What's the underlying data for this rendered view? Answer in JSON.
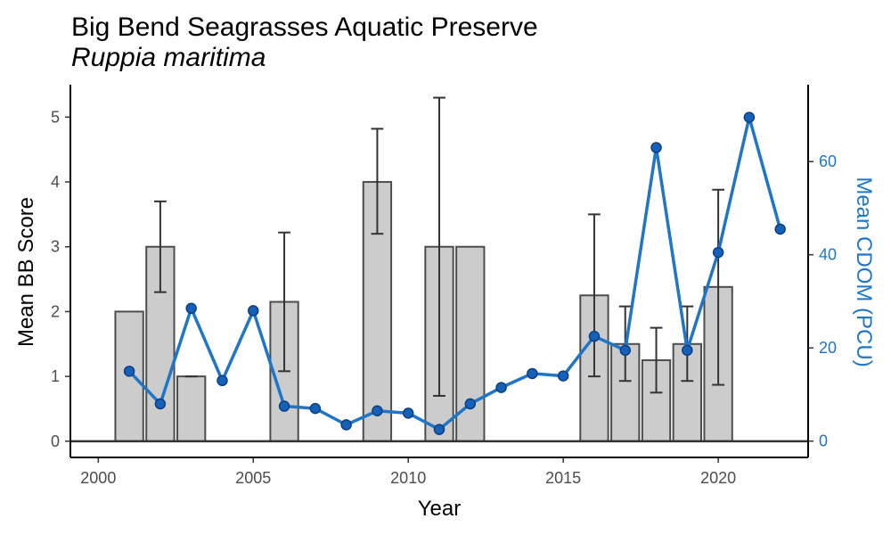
{
  "chart_data": {
    "type": "bar",
    "title": "Big Bend Seagrasses Aquatic Preserve",
    "subtitle": "Ruppia maritima",
    "xlabel": "Year",
    "ylabel": "Mean BB Score",
    "y2label": "Mean CDOM (PCU)",
    "xlim": [
      1999.1,
      2022.9
    ],
    "ylim": [
      -0.25,
      5.5
    ],
    "y2lim": [
      -3.5,
      76.5
    ],
    "xticks": [
      2000,
      2005,
      2010,
      2015,
      2020
    ],
    "yticks": [
      0,
      1,
      2,
      3,
      4,
      5
    ],
    "y2ticks": [
      0,
      20,
      40,
      60
    ],
    "grid": false,
    "colors": {
      "bar_fill": "#cccccc",
      "bar_stroke": "#4d4d4d",
      "error_bar": "#333333",
      "line": "#1f75c8",
      "point_fill": "#1560b8",
      "point_stroke": "#0d3f80",
      "right_axis": "#1f75c8"
    },
    "bars": {
      "name": "Mean BB Score",
      "x": [
        2001,
        2002,
        2003,
        2006,
        2009,
        2011,
        2012,
        2016,
        2017,
        2018,
        2019,
        2020
      ],
      "values": [
        2.0,
        3.0,
        1.0,
        2.15,
        4.0,
        3.0,
        3.0,
        2.25,
        1.5,
        1.25,
        1.5,
        2.38
      ],
      "err_low": [
        null,
        2.3,
        1.0,
        1.08,
        3.2,
        0.7,
        null,
        1.0,
        0.93,
        0.75,
        0.93,
        0.87
      ],
      "err_high": [
        null,
        3.7,
        1.0,
        3.22,
        4.82,
        5.3,
        null,
        3.5,
        2.08,
        1.75,
        2.08,
        3.88
      ]
    },
    "line": {
      "name": "Mean CDOM (PCU)",
      "x": [
        2001,
        2002,
        2003,
        2004,
        2005,
        2006,
        2007,
        2008,
        2009,
        2010,
        2011,
        2012,
        2013,
        2014,
        2015,
        2016,
        2017,
        2018,
        2019,
        2020,
        2021,
        2022
      ],
      "values": [
        15,
        8,
        28.5,
        13,
        28,
        7.5,
        7,
        3.5,
        6.5,
        6,
        2.5,
        8,
        11.5,
        14.5,
        14,
        22.5,
        19.5,
        63,
        19.5,
        40.5,
        69.5,
        45.5
      ]
    }
  }
}
